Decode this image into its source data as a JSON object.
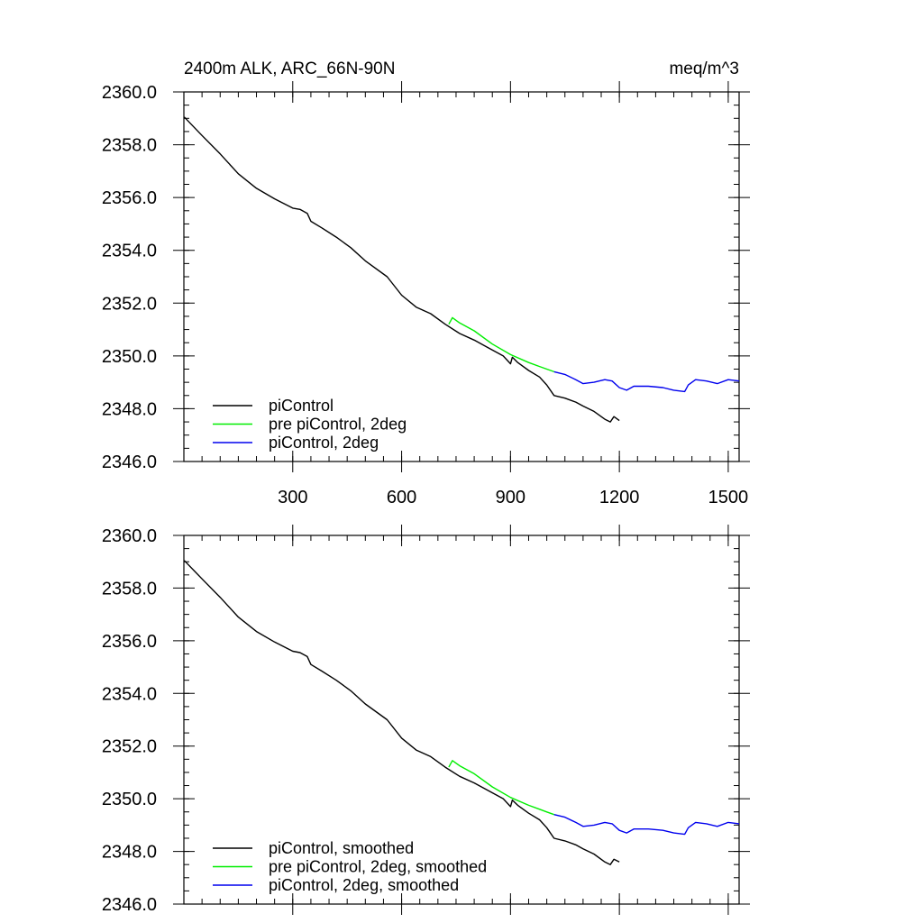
{
  "figure": {
    "title_left": "2400m ALK, ARC_66N-90N",
    "title_right": "meq/m^3"
  },
  "chart_data": [
    {
      "type": "line",
      "panel": "top",
      "xlim": [
        0,
        1530
      ],
      "ylim": [
        2346.0,
        2360.0
      ],
      "x_ticks": [
        300,
        600,
        900,
        1200,
        1500
      ],
      "x_tick_labels": [
        "300",
        "600",
        "900",
        "1200",
        "1500"
      ],
      "y_ticks": [
        2346.0,
        2348.0,
        2350.0,
        2352.0,
        2354.0,
        2356.0,
        2358.0,
        2360.0
      ],
      "y_tick_labels": [
        "2346.0",
        "2348.0",
        "2350.0",
        "2352.0",
        "2354.0",
        "2356.0",
        "2358.0",
        "2360.0"
      ],
      "grid": false,
      "legend_position": "bottom-left",
      "series": [
        {
          "name": "piControl",
          "color": "#000000",
          "x": [
            1,
            50,
            100,
            150,
            200,
            250,
            300,
            320,
            340,
            350,
            380,
            420,
            460,
            500,
            560,
            600,
            640,
            680,
            720,
            760,
            800,
            840,
            880,
            900,
            905,
            920,
            950,
            980,
            1000,
            1020,
            1050,
            1080,
            1100,
            1130,
            1160,
            1175,
            1185,
            1200
          ],
          "y": [
            2359.05,
            2358.35,
            2357.65,
            2356.9,
            2356.35,
            2355.95,
            2355.6,
            2355.55,
            2355.4,
            2355.1,
            2354.85,
            2354.5,
            2354.1,
            2353.6,
            2353.0,
            2352.3,
            2351.85,
            2351.6,
            2351.2,
            2350.85,
            2350.6,
            2350.3,
            2350.0,
            2349.7,
            2349.95,
            2349.75,
            2349.45,
            2349.2,
            2348.9,
            2348.5,
            2348.4,
            2348.25,
            2348.1,
            2347.9,
            2347.6,
            2347.5,
            2347.7,
            2347.55
          ]
        },
        {
          "name": "pre piControl, 2deg",
          "color": "#00ee00",
          "x": [
            730,
            740,
            760,
            800,
            850,
            900,
            950,
            980,
            1000,
            1020
          ],
          "y": [
            2351.2,
            2351.45,
            2351.25,
            2350.95,
            2350.45,
            2350.05,
            2349.75,
            2349.6,
            2349.5,
            2349.4
          ]
        },
        {
          "name": "piControl, 2deg",
          "color": "#0000ee",
          "x": [
            1020,
            1050,
            1080,
            1100,
            1130,
            1160,
            1180,
            1200,
            1220,
            1240,
            1280,
            1320,
            1350,
            1380,
            1390,
            1410,
            1440,
            1470,
            1500,
            1530
          ],
          "y": [
            2349.4,
            2349.3,
            2349.1,
            2348.95,
            2349.0,
            2349.1,
            2349.05,
            2348.8,
            2348.7,
            2348.85,
            2348.85,
            2348.8,
            2348.7,
            2348.65,
            2348.9,
            2349.1,
            2349.05,
            2348.95,
            2349.1,
            2349.05
          ]
        }
      ]
    },
    {
      "type": "line",
      "panel": "bottom",
      "xlim": [
        0,
        1530
      ],
      "ylim": [
        2346.0,
        2360.0
      ],
      "x_ticks": [
        300,
        600,
        900,
        1200,
        1500
      ],
      "x_tick_labels": [],
      "y_ticks": [
        2346.0,
        2348.0,
        2350.0,
        2352.0,
        2354.0,
        2356.0,
        2358.0,
        2360.0
      ],
      "y_tick_labels": [
        "2346.0",
        "2348.0",
        "2350.0",
        "2352.0",
        "2354.0",
        "2356.0",
        "2358.0",
        "2360.0"
      ],
      "grid": false,
      "legend_position": "bottom-left",
      "series": [
        {
          "name": "piControl, smoothed",
          "color": "#000000",
          "x": [
            1,
            50,
            100,
            150,
            200,
            250,
            300,
            320,
            340,
            350,
            380,
            420,
            460,
            500,
            560,
            600,
            640,
            680,
            720,
            760,
            800,
            840,
            880,
            900,
            905,
            920,
            950,
            980,
            1000,
            1020,
            1050,
            1080,
            1100,
            1130,
            1160,
            1175,
            1185,
            1200
          ],
          "y": [
            2359.05,
            2358.35,
            2357.65,
            2356.9,
            2356.35,
            2355.95,
            2355.6,
            2355.55,
            2355.4,
            2355.1,
            2354.85,
            2354.5,
            2354.1,
            2353.6,
            2353.0,
            2352.3,
            2351.85,
            2351.6,
            2351.2,
            2350.85,
            2350.6,
            2350.3,
            2350.0,
            2349.7,
            2349.95,
            2349.75,
            2349.45,
            2349.2,
            2348.9,
            2348.5,
            2348.4,
            2348.25,
            2348.1,
            2347.9,
            2347.6,
            2347.5,
            2347.7,
            2347.6
          ]
        },
        {
          "name": "pre piControl, 2deg, smoothed",
          "color": "#00ee00",
          "x": [
            730,
            740,
            760,
            800,
            850,
            900,
            950,
            980,
            1000,
            1020
          ],
          "y": [
            2351.2,
            2351.45,
            2351.25,
            2350.95,
            2350.45,
            2350.05,
            2349.75,
            2349.6,
            2349.5,
            2349.4
          ]
        },
        {
          "name": "piControl, 2deg, smoothed",
          "color": "#0000ee",
          "x": [
            1020,
            1050,
            1080,
            1100,
            1130,
            1160,
            1180,
            1200,
            1220,
            1240,
            1280,
            1320,
            1350,
            1380,
            1390,
            1410,
            1440,
            1470,
            1500,
            1530
          ],
          "y": [
            2349.4,
            2349.3,
            2349.1,
            2348.95,
            2349.0,
            2349.1,
            2349.05,
            2348.8,
            2348.7,
            2348.85,
            2348.85,
            2348.8,
            2348.7,
            2348.65,
            2348.9,
            2349.1,
            2349.05,
            2348.95,
            2349.1,
            2349.05
          ]
        }
      ]
    }
  ]
}
